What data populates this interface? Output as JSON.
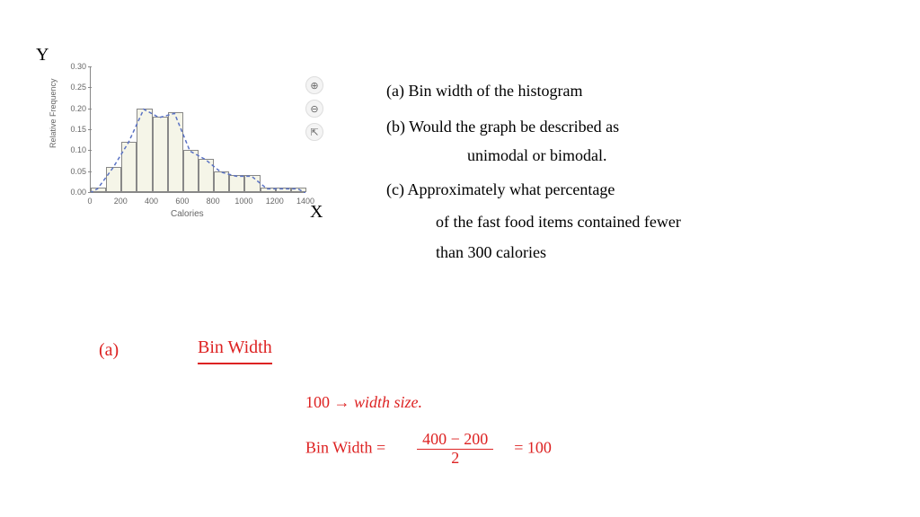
{
  "axis": {
    "y": "Y",
    "x": "X"
  },
  "chart": {
    "type": "histogram",
    "ylabel": "Relative Frequency",
    "xlabel": "Calories",
    "yticks": [
      "0.00",
      "0.05",
      "0.10",
      "0.15",
      "0.20",
      "0.25",
      "0.30"
    ],
    "ylim": [
      0,
      0.3
    ],
    "xticks": [
      "0",
      "200",
      "400",
      "600",
      "800",
      "1000",
      "1200",
      "1400"
    ],
    "xlim": [
      0,
      1400
    ],
    "bin_width": 100,
    "bars": [
      {
        "x0": 0,
        "h": 0.01
      },
      {
        "x0": 100,
        "h": 0.06
      },
      {
        "x0": 200,
        "h": 0.12
      },
      {
        "x0": 300,
        "h": 0.2
      },
      {
        "x0": 400,
        "h": 0.18
      },
      {
        "x0": 500,
        "h": 0.19
      },
      {
        "x0": 600,
        "h": 0.1
      },
      {
        "x0": 700,
        "h": 0.08
      },
      {
        "x0": 800,
        "h": 0.05
      },
      {
        "x0": 900,
        "h": 0.04
      },
      {
        "x0": 1000,
        "h": 0.04
      },
      {
        "x0": 1100,
        "h": 0.01
      },
      {
        "x0": 1200,
        "h": 0.01
      },
      {
        "x0": 1300,
        "h": 0.01
      }
    ],
    "bar_fill": "#f5f5e8",
    "bar_border": "#888888",
    "dash_color": "#5a72c4",
    "background": "#ffffff"
  },
  "icons": {
    "zoom_in": "⊕",
    "zoom_out": "⊖",
    "open": "⇱"
  },
  "questions": {
    "a": "(a)  Bin width of the histogram",
    "b1": "(b)  Would the graph be described as",
    "b2": "unimodal or bimodal.",
    "c1": "(c)   Approximately what percentage",
    "c2": "of the fast food items contained fewer",
    "c3": "than 300 calories"
  },
  "answer": {
    "label": "(a)",
    "title": "Bin Width",
    "line1a": "100 →",
    "line1b": "width size.",
    "line2a": "Bin Width =",
    "frac_num": "400 − 200",
    "frac_den": "2",
    "eq_result": "= 100"
  }
}
